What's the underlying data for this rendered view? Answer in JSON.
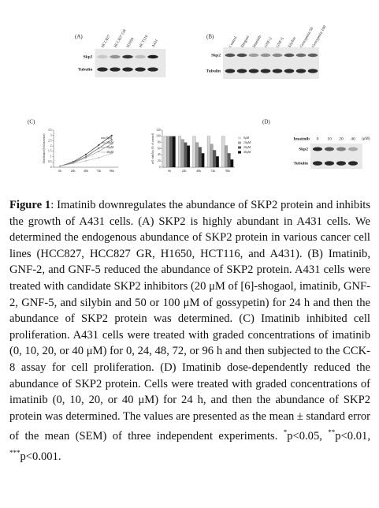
{
  "panel_a": {
    "label": "(A)",
    "lanes": [
      "HCC827",
      "HCC827 GR",
      "H1650",
      "HCT116",
      "A431"
    ],
    "rows": [
      "Skp2",
      "Tubulin"
    ]
  },
  "panel_b": {
    "label": "(B)",
    "lanes": [
      "Control",
      "Shogaol",
      "Imatinib",
      "GNF-2",
      "GNF-5",
      "Silybin",
      "Gossypetin 50",
      "Gossypetin 100"
    ],
    "rows": [
      "Skp2",
      "Tubulin"
    ]
  },
  "panel_c": {
    "label": "(C)"
  },
  "chart_data": [
    {
      "type": "line",
      "y_label": "Absorbance(fold increase)",
      "categories": [
        "0h",
        "24h",
        "48h",
        "72h",
        "96h"
      ],
      "ylim": [
        0,
        3.5
      ],
      "yticks": [
        0,
        0.5,
        1,
        1.5,
        2,
        2.5,
        3,
        3.5
      ],
      "series": [
        {
          "name": "0μM",
          "color": "#333333",
          "values": [
            0.1,
            0.5,
            1.2,
            2.1,
            3.0
          ]
        },
        {
          "name": "10μM",
          "color": "#666666",
          "values": [
            0.1,
            0.45,
            1.0,
            1.8,
            2.6
          ]
        },
        {
          "name": "20μM",
          "color": "#999999",
          "values": [
            0.1,
            0.4,
            0.9,
            1.5,
            2.2
          ]
        },
        {
          "name": "40μM",
          "color": "#bbbbbb",
          "values": [
            0.1,
            0.35,
            0.6,
            0.9,
            1.3
          ]
        }
      ]
    },
    {
      "type": "bar",
      "y_label": "cell viability (% of control)",
      "categories": [
        "0h",
        "24h",
        "48h",
        "72h",
        "96h"
      ],
      "ylim": [
        0,
        120
      ],
      "yticks": [
        0,
        20,
        40,
        60,
        80,
        100,
        120
      ],
      "series": [
        {
          "name": "0μM",
          "color": "#d9d9d9",
          "values": [
            100,
            100,
            100,
            100,
            100
          ]
        },
        {
          "name": "10μM",
          "color": "#a6a6a6",
          "values": [
            100,
            90,
            80,
            75,
            70
          ]
        },
        {
          "name": "20μM",
          "color": "#595959",
          "values": [
            100,
            80,
            65,
            55,
            45
          ]
        },
        {
          "name": "40μM",
          "color": "#111111",
          "values": [
            100,
            70,
            45,
            35,
            25
          ]
        }
      ]
    }
  ],
  "panel_d": {
    "label": "(D)",
    "treatment": "Imatinib",
    "doses": [
      "0",
      "10",
      "20",
      "40"
    ],
    "unit": "(μM)",
    "rows": [
      "Skp2",
      "Tubulin"
    ]
  },
  "caption": {
    "label": "Figure 1",
    "text": ": Imatinib downregulates the abundance of SKP2 protein and inhibits the growth of A431 cells. (A) SKP2 is highly abundant in A431 cells. We determined the endogenous abundance of SKP2 protein in various cancer cell lines (HCC827, HCC827 GR, H1650, HCT116, and A431). (B) Imatinib, GNF-2, and GNF-5 reduced the abundance of SKP2 protein. A431 cells were treated with candidate SKP2 inhibitors (20 μM of [6]-shogaol, imatinib, GNF-2, GNF-5, and silybin and 50 or 100 μM of gossypetin) for 24 h and then the abundance of SKP2 protein was determined. (C) Imatinib inhibited cell proliferation. A431 cells were treated with graded concentrations of imatinib (0, 10, 20, or 40 μM) for 0, 24, 48, 72, or 96 h and then subjected to the CCK-8 assay for cell proliferation. (D) Imatinib dose-dependently reduced the abundance of SKP2 protein. Cells were treated with graded concentrations of imatinib (0, 10, 20, or 40 μM) for 24 h, and then the abundance of SKP2 protein was determined. The values are presented as the mean ± standard error of the mean (SEM) of three independent experiments. ",
    "notes": [
      {
        "mark": "*",
        "text": "p<0.05, "
      },
      {
        "mark": "**",
        "text": "p<0.01, "
      },
      {
        "mark": "***",
        "text": "p<0.001."
      }
    ]
  }
}
